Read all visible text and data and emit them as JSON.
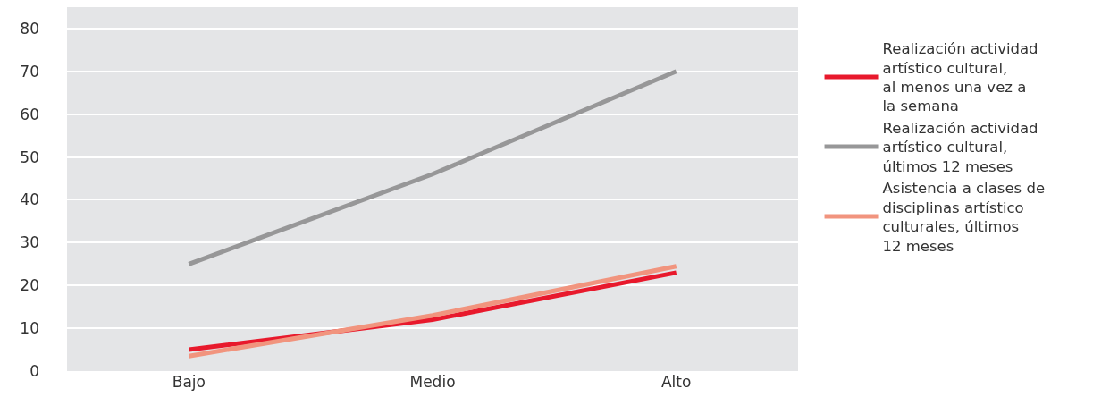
{
  "chart_data": {
    "type": "line",
    "categories": [
      "Bajo",
      "Medio",
      "Alto"
    ],
    "series": [
      {
        "name": "Realización actividad\nartístico cultural,\nal menos una vez a\nla semana",
        "color": "#e8192c",
        "values": [
          5,
          12,
          23
        ]
      },
      {
        "name": "Realización actividad\nartístico cultural,\núltimos 12 meses",
        "color": "#979798",
        "values": [
          25,
          46,
          70
        ]
      },
      {
        "name": "Asistencia a clases de\ndisciplinas artístico\nculturales, últimos\n12 meses",
        "color": "#f1947e",
        "values": [
          3.5,
          13,
          24.5
        ]
      }
    ],
    "ylim": [
      0,
      85
    ],
    "yticks": [
      0,
      10,
      20,
      30,
      40,
      50,
      60,
      70,
      80
    ],
    "grid": "y",
    "legend": "right",
    "marker": "none",
    "line_style": "solid"
  }
}
